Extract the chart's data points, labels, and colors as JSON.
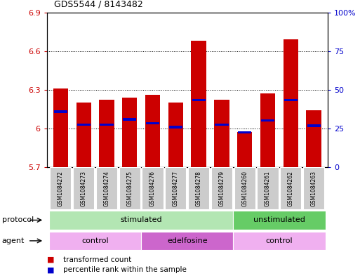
{
  "title": "GDS5544 / 8143482",
  "samples": [
    "GSM1084272",
    "GSM1084273",
    "GSM1084274",
    "GSM1084275",
    "GSM1084276",
    "GSM1084277",
    "GSM1084278",
    "GSM1084279",
    "GSM1084260",
    "GSM1084261",
    "GSM1084262",
    "GSM1084263"
  ],
  "bar_values": [
    6.31,
    6.2,
    6.22,
    6.24,
    6.26,
    6.2,
    6.68,
    6.22,
    5.97,
    6.27,
    6.69,
    6.14
  ],
  "bar_bottom": 5.7,
  "blue_values": [
    6.13,
    6.03,
    6.03,
    6.07,
    6.04,
    6.01,
    6.22,
    6.03,
    5.97,
    6.06,
    6.22,
    6.02
  ],
  "ylim_left": [
    5.7,
    6.9
  ],
  "ylim_right": [
    0,
    100
  ],
  "yticks_left": [
    5.7,
    6.0,
    6.3,
    6.6,
    6.9
  ],
  "yticks_right": [
    0,
    25,
    50,
    75,
    100
  ],
  "ytick_labels_left": [
    "5.7",
    "6",
    "6.3",
    "6.6",
    "6.9"
  ],
  "ytick_labels_right": [
    "0",
    "25",
    "50",
    "75",
    "100%"
  ],
  "bar_color": "#cc0000",
  "blue_color": "#0000cc",
  "grid_color": "black",
  "protocol_groups": [
    {
      "label": "stimulated",
      "start": 0,
      "end": 8,
      "color": "#b3e6b3"
    },
    {
      "label": "unstimulated",
      "start": 8,
      "end": 12,
      "color": "#66cc66"
    }
  ],
  "agent_groups": [
    {
      "label": "control",
      "start": 0,
      "end": 4,
      "color": "#f0b0f0"
    },
    {
      "label": "edelfosine",
      "start": 4,
      "end": 8,
      "color": "#cc66cc"
    },
    {
      "label": "control",
      "start": 8,
      "end": 12,
      "color": "#f0b0f0"
    }
  ],
  "legend_items": [
    {
      "label": "transformed count",
      "color": "#cc0000"
    },
    {
      "label": "percentile rank within the sample",
      "color": "#0000cc"
    }
  ],
  "protocol_label": "protocol",
  "agent_label": "agent",
  "bg_color": "#ffffff",
  "bar_width": 0.65,
  "sample_bg_color": "#cccccc"
}
